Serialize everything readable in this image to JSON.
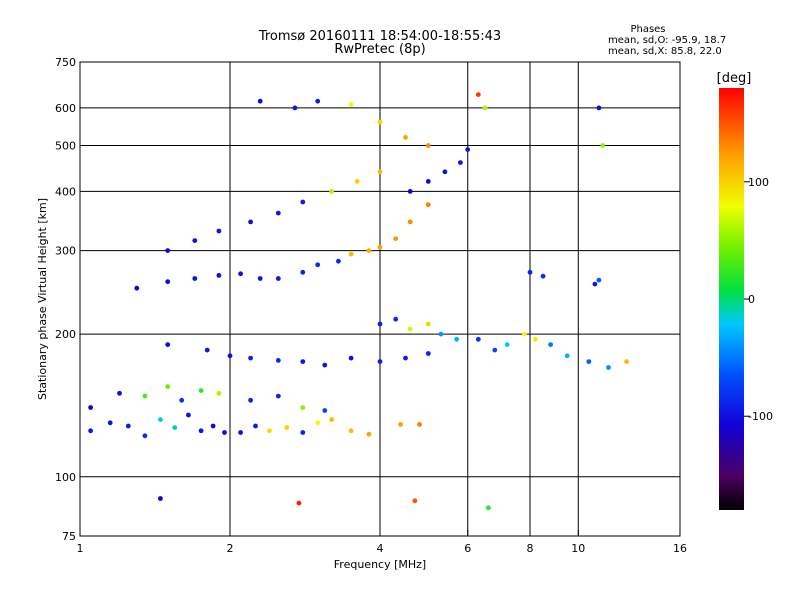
{
  "chart_data": {
    "type": "scatter",
    "title": "Tromsø 20160111 18:54:00-18:55:43",
    "subtitle": "RwPretec (8p)",
    "phase_stats": {
      "heading": "Phases",
      "line_o": "mean, sd,O: -95.9, 18.7",
      "line_x": "mean, sd,X:  85.8, 22.0"
    },
    "xlabel": "Frequency [MHz]",
    "ylabel": "Stationary phase Virtual Height [km]",
    "x_scale": "log2",
    "y_scale": "log",
    "xlim": [
      1,
      16
    ],
    "ylim": [
      75,
      750
    ],
    "x_ticks": [
      1,
      2,
      4,
      6,
      8,
      10,
      16
    ],
    "x_tick_labels": [
      "1",
      "2",
      "4",
      "6",
      "8",
      "10",
      "16"
    ],
    "y_ticks": [
      75,
      100,
      200,
      300,
      400,
      500,
      600,
      750
    ],
    "y_tick_labels": [
      "75",
      "100",
      "200",
      "300",
      "400",
      "500",
      "600",
      "750"
    ],
    "grid": true,
    "colorbar": {
      "label": "[deg]",
      "range": [
        -180,
        180
      ],
      "ticks": [
        100,
        0,
        -100
      ],
      "tick_labels": [
        "100",
        "0",
        "-100"
      ]
    },
    "series": [
      {
        "points": [
          [
            1.05,
            125,
            -95
          ],
          [
            1.15,
            130,
            -100
          ],
          [
            1.25,
            128,
            -90
          ],
          [
            1.35,
            122,
            -85
          ],
          [
            1.45,
            132,
            -20
          ],
          [
            1.55,
            127,
            -10
          ],
          [
            1.65,
            135,
            -100
          ],
          [
            1.75,
            125,
            -95
          ],
          [
            1.85,
            128,
            -105
          ],
          [
            1.95,
            124,
            -100
          ],
          [
            2.1,
            124,
            -98
          ],
          [
            2.25,
            128,
            -92
          ],
          [
            2.4,
            125,
            95
          ],
          [
            2.6,
            127,
            100
          ],
          [
            2.8,
            124,
            -90
          ],
          [
            3.0,
            130,
            80
          ],
          [
            3.2,
            132,
            110
          ],
          [
            3.5,
            125,
            110
          ],
          [
            3.8,
            123,
            120
          ],
          [
            4.4,
            129,
            120
          ],
          [
            4.8,
            129,
            135
          ],
          [
            1.05,
            140,
            -110
          ],
          [
            1.2,
            150,
            -100
          ],
          [
            1.35,
            148,
            30
          ],
          [
            1.5,
            155,
            40
          ],
          [
            1.6,
            145,
            -80
          ],
          [
            1.75,
            152,
            20
          ],
          [
            1.9,
            150,
            60
          ],
          [
            2.2,
            145,
            -90
          ],
          [
            2.5,
            148,
            -85
          ],
          [
            2.8,
            140,
            50
          ],
          [
            3.1,
            138,
            -70
          ],
          [
            1.5,
            190,
            -105
          ],
          [
            1.8,
            185,
            -95
          ],
          [
            2.0,
            180,
            -100
          ],
          [
            2.2,
            178,
            -90
          ],
          [
            2.5,
            176,
            -85
          ],
          [
            2.8,
            175,
            -95
          ],
          [
            3.1,
            172,
            -95
          ],
          [
            3.5,
            178,
            -100
          ],
          [
            4.0,
            175,
            -90
          ],
          [
            4.5,
            178,
            -92
          ],
          [
            5.0,
            182,
            -88
          ],
          [
            1.3,
            250,
            -110
          ],
          [
            1.5,
            258,
            -105
          ],
          [
            1.7,
            262,
            -100
          ],
          [
            1.9,
            266,
            -100
          ],
          [
            2.1,
            268,
            -100
          ],
          [
            2.3,
            262,
            -95
          ],
          [
            2.5,
            262,
            -95
          ],
          [
            2.8,
            270,
            -90
          ],
          [
            3.0,
            280,
            -85
          ],
          [
            3.3,
            285,
            -85
          ],
          [
            3.5,
            295,
            110
          ],
          [
            3.8,
            300,
            115
          ],
          [
            4.0,
            305,
            120
          ],
          [
            4.3,
            318,
            125
          ],
          [
            4.6,
            345,
            130
          ],
          [
            5.0,
            375,
            135
          ],
          [
            1.5,
            300,
            -110
          ],
          [
            1.7,
            315,
            -100
          ],
          [
            1.9,
            330,
            -95
          ],
          [
            2.2,
            345,
            -100
          ],
          [
            2.5,
            360,
            -95
          ],
          [
            2.8,
            380,
            -90
          ],
          [
            3.2,
            400,
            60
          ],
          [
            3.6,
            420,
            100
          ],
          [
            4.0,
            440,
            110
          ],
          [
            4.6,
            400,
            -110
          ],
          [
            5.0,
            420,
            -105
          ],
          [
            5.4,
            440,
            -100
          ],
          [
            5.8,
            460,
            -95
          ],
          [
            6.0,
            490,
            -95
          ],
          [
            2.3,
            620,
            -100
          ],
          [
            2.7,
            600,
            -95
          ],
          [
            3.0,
            620,
            -90
          ],
          [
            3.5,
            610,
            80
          ],
          [
            4.0,
            560,
            100
          ],
          [
            4.5,
            520,
            120
          ],
          [
            5.0,
            500,
            130
          ],
          [
            4.0,
            210,
            -90
          ],
          [
            4.3,
            215,
            -85
          ],
          [
            4.6,
            205,
            70
          ],
          [
            5.0,
            210,
            100
          ],
          [
            5.3,
            200,
            -40
          ],
          [
            5.7,
            195,
            -30
          ],
          [
            6.3,
            195,
            -80
          ],
          [
            6.8,
            185,
            -70
          ],
          [
            7.2,
            190,
            -20
          ],
          [
            7.8,
            200,
            80
          ],
          [
            8.2,
            195,
            90
          ],
          [
            8.8,
            190,
            -50
          ],
          [
            9.5,
            180,
            -30
          ],
          [
            10.5,
            175,
            -60
          ],
          [
            11.5,
            170,
            -40
          ],
          [
            12.5,
            175,
            110
          ],
          [
            8.0,
            270,
            -90
          ],
          [
            8.5,
            265,
            -80
          ],
          [
            10.8,
            255,
            -95
          ],
          [
            11.0,
            260,
            -60
          ],
          [
            11.0,
            600,
            -100
          ],
          [
            11.2,
            500,
            50
          ],
          [
            6.3,
            640,
            160
          ],
          [
            6.5,
            600,
            60
          ],
          [
            1.45,
            90,
            -110
          ],
          [
            2.75,
            88,
            170
          ],
          [
            4.7,
            89,
            150
          ],
          [
            6.6,
            86,
            20
          ]
        ]
      }
    ]
  }
}
